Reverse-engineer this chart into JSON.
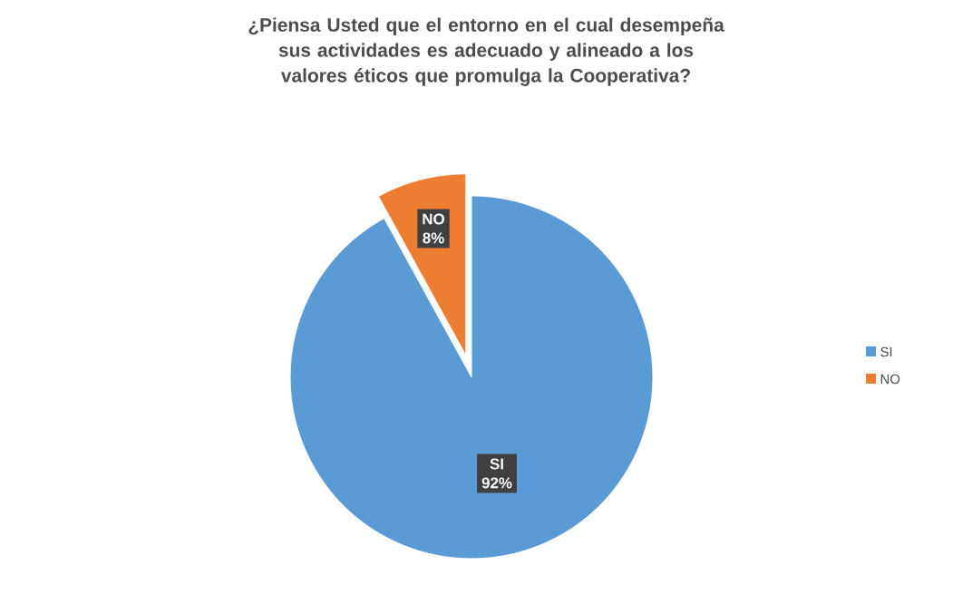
{
  "chart_data": {
    "type": "pie",
    "title": "¿Piensa Usted que el entorno en el cual  desempeña sus actividades es adecuado y alineado a los valores éticos que promulga la Cooperativa?",
    "categories": [
      "SI",
      "NO"
    ],
    "values": [
      92,
      8
    ],
    "colors": [
      "#5b9bd5",
      "#ed7d31"
    ],
    "value_labels": [
      "92%",
      "8%"
    ],
    "legend": "right"
  }
}
